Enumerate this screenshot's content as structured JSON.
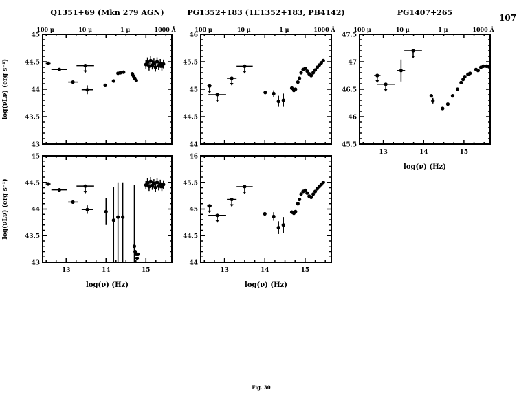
{
  "page_number": "107",
  "caption": "Fig. 30",
  "chart_data": [
    {
      "type": "scatter",
      "title": "Q1351+69 (Mkn 279 AGN)",
      "xlabel": "",
      "ylabel": "log(νLν) (erg s⁻¹)",
      "xlim": [
        12.41,
        15.65
      ],
      "ylim": [
        43,
        45
      ],
      "xticks": [],
      "yticks": [
        "43",
        "43.5",
        "44",
        "44.5",
        "45"
      ],
      "top_axis_labels": [
        "100 μ",
        "10 μ",
        "1 μ",
        "1000 Å"
      ],
      "points": [
        {
          "x": 12.55,
          "y": 44.47,
          "xe": 0.06
        },
        {
          "x": 12.83,
          "y": 44.36,
          "xe": 0.2
        },
        {
          "x": 13.17,
          "y": 44.13,
          "xe": 0.12
        },
        {
          "x": 13.48,
          "y": 44.43,
          "xe": 0.22,
          "up": true
        },
        {
          "x": 13.53,
          "y": 43.99,
          "xe": 0.14,
          "ye": 0.08
        },
        {
          "x": 13.98,
          "y": 44.07
        },
        {
          "x": 14.19,
          "y": 44.15
        },
        {
          "x": 14.3,
          "y": 44.29
        },
        {
          "x": 14.36,
          "y": 44.3
        },
        {
          "x": 14.44,
          "y": 44.31
        },
        {
          "x": 14.66,
          "y": 44.28
        },
        {
          "x": 14.69,
          "y": 44.24
        },
        {
          "x": 14.72,
          "y": 44.2
        },
        {
          "x": 14.76,
          "y": 44.16
        },
        {
          "x": 15.0,
          "y": 44.45,
          "ye": 0.08
        },
        {
          "x": 15.04,
          "y": 44.5,
          "ye": 0.08
        },
        {
          "x": 15.08,
          "y": 44.42,
          "ye": 0.08
        },
        {
          "x": 15.12,
          "y": 44.52,
          "ye": 0.08
        },
        {
          "x": 15.16,
          "y": 44.44,
          "ye": 0.08
        },
        {
          "x": 15.2,
          "y": 44.48,
          "ye": 0.08
        },
        {
          "x": 15.24,
          "y": 44.4,
          "ye": 0.08
        },
        {
          "x": 15.28,
          "y": 44.5,
          "ye": 0.08
        },
        {
          "x": 15.32,
          "y": 44.43,
          "ye": 0.08
        },
        {
          "x": 15.36,
          "y": 44.47,
          "ye": 0.08
        },
        {
          "x": 15.4,
          "y": 44.42,
          "ye": 0.08
        },
        {
          "x": 15.44,
          "y": 44.46,
          "ye": 0.08
        }
      ]
    },
    {
      "type": "scatter",
      "title": "PG1352+183 (1E1352+183, PB4142)",
      "xlabel": "",
      "ylabel": "",
      "xlim": [
        12.41,
        15.65
      ],
      "ylim": [
        44,
        46
      ],
      "xticks": [],
      "yticks": [
        "44",
        "44.5",
        "45",
        "45.5",
        "46"
      ],
      "top_axis_labels": [
        "100 μ",
        "10 μ",
        "1 μ",
        "1000 Å"
      ],
      "points": [
        {
          "x": 12.63,
          "y": 45.06,
          "xe": 0.06,
          "up": true
        },
        {
          "x": 12.82,
          "y": 44.9,
          "xe": 0.22,
          "up": true
        },
        {
          "x": 13.18,
          "y": 45.2,
          "xe": 0.12,
          "up": true
        },
        {
          "x": 13.5,
          "y": 45.42,
          "xe": 0.2,
          "up": true
        },
        {
          "x": 14.01,
          "y": 44.94,
          "xe": 0.04
        },
        {
          "x": 14.22,
          "y": 44.92,
          "ye": 0.06
        },
        {
          "x": 14.34,
          "y": 44.78,
          "ye": 0.1
        },
        {
          "x": 14.46,
          "y": 44.8,
          "ye": 0.12
        },
        {
          "x": 14.67,
          "y": 45.02
        },
        {
          "x": 14.72,
          "y": 44.98
        },
        {
          "x": 14.76,
          "y": 45.0
        },
        {
          "x": 14.82,
          "y": 45.13
        },
        {
          "x": 14.86,
          "y": 45.2
        },
        {
          "x": 14.9,
          "y": 45.3
        },
        {
          "x": 14.95,
          "y": 45.36
        },
        {
          "x": 15.0,
          "y": 45.38
        },
        {
          "x": 15.05,
          "y": 45.33
        },
        {
          "x": 15.1,
          "y": 45.28
        },
        {
          "x": 15.15,
          "y": 45.25
        },
        {
          "x": 15.2,
          "y": 45.3
        },
        {
          "x": 15.25,
          "y": 45.35
        },
        {
          "x": 15.3,
          "y": 45.4
        },
        {
          "x": 15.35,
          "y": 45.44
        },
        {
          "x": 15.4,
          "y": 45.48
        },
        {
          "x": 15.45,
          "y": 45.52
        }
      ]
    },
    {
      "type": "scatter",
      "title": "PG1407+265",
      "xlabel": "log(ν) (Hz)",
      "ylabel": "",
      "xlim": [
        12.41,
        15.65
      ],
      "ylim": [
        45.5,
        47.5
      ],
      "xticks": [
        "13",
        "14",
        "15"
      ],
      "yticks": [
        "45.5",
        "46",
        "46.5",
        "47",
        "47.5"
      ],
      "top_axis_labels": [
        "100 μ",
        "10 μ",
        "1 μ",
        "1000 Å"
      ],
      "points": [
        {
          "x": 12.85,
          "y": 46.75,
          "xe": 0.08,
          "up": true
        },
        {
          "x": 13.06,
          "y": 46.59,
          "xe": 0.22,
          "up": true
        },
        {
          "x": 13.44,
          "y": 46.84,
          "ye": 0.2,
          "xe": 0.1
        },
        {
          "x": 13.74,
          "y": 47.2,
          "xe": 0.22,
          "up": true
        },
        {
          "x": 14.19,
          "y": 46.38
        },
        {
          "x": 14.23,
          "y": 46.29,
          "ye": 0.05
        },
        {
          "x": 14.47,
          "y": 46.15
        },
        {
          "x": 14.6,
          "y": 46.23
        },
        {
          "x": 14.72,
          "y": 46.38
        },
        {
          "x": 14.84,
          "y": 46.5
        },
        {
          "x": 14.93,
          "y": 46.62
        },
        {
          "x": 14.98,
          "y": 46.68
        },
        {
          "x": 15.02,
          "y": 46.73
        },
        {
          "x": 15.1,
          "y": 46.77
        },
        {
          "x": 15.15,
          "y": 46.79
        },
        {
          "x": 15.3,
          "y": 46.86
        },
        {
          "x": 15.35,
          "y": 46.84
        },
        {
          "x": 15.42,
          "y": 46.9
        },
        {
          "x": 15.48,
          "y": 46.92
        },
        {
          "x": 15.56,
          "y": 46.92
        },
        {
          "x": 15.62,
          "y": 46.91
        }
      ]
    },
    {
      "type": "scatter",
      "title": "",
      "xlabel": "log(ν) (Hz)",
      "ylabel": "log(νLν) (erg s⁻¹)",
      "xlim": [
        12.41,
        15.65
      ],
      "ylim": [
        43,
        45
      ],
      "xticks": [
        "13",
        "14",
        "15"
      ],
      "yticks": [
        "43",
        "43.5",
        "44",
        "44.5",
        "45"
      ],
      "top_axis_labels": [],
      "points": [
        {
          "x": 12.55,
          "y": 44.47,
          "xe": 0.06
        },
        {
          "x": 12.83,
          "y": 44.36,
          "xe": 0.2
        },
        {
          "x": 13.17,
          "y": 44.13,
          "xe": 0.12
        },
        {
          "x": 13.48,
          "y": 44.43,
          "xe": 0.22,
          "up": true
        },
        {
          "x": 13.53,
          "y": 43.99,
          "xe": 0.14,
          "ye": 0.08
        },
        {
          "x": 14.0,
          "y": 43.95,
          "yr": [
            43.7,
            44.2
          ]
        },
        {
          "x": 14.19,
          "y": 43.79,
          "yr": [
            43.0,
            44.41
          ]
        },
        {
          "x": 14.3,
          "y": 43.85,
          "yr": [
            43.0,
            44.5
          ]
        },
        {
          "x": 14.42,
          "y": 43.85,
          "yr": [
            43.0,
            44.5
          ]
        },
        {
          "x": 14.71,
          "y": 43.3,
          "yr": [
            43.0,
            44.45
          ]
        },
        {
          "x": 14.73,
          "y": 43.2
        },
        {
          "x": 14.76,
          "y": 43.15
        },
        {
          "x": 14.8,
          "y": 43.15
        },
        {
          "x": 14.78,
          "y": 43.07
        },
        {
          "x": 15.0,
          "y": 44.45,
          "ye": 0.08
        },
        {
          "x": 15.04,
          "y": 44.5,
          "ye": 0.08
        },
        {
          "x": 15.08,
          "y": 44.42,
          "ye": 0.08
        },
        {
          "x": 15.12,
          "y": 44.52,
          "ye": 0.08
        },
        {
          "x": 15.16,
          "y": 44.44,
          "ye": 0.08
        },
        {
          "x": 15.2,
          "y": 44.48,
          "ye": 0.08
        },
        {
          "x": 15.24,
          "y": 44.4,
          "ye": 0.08
        },
        {
          "x": 15.28,
          "y": 44.5,
          "ye": 0.08
        },
        {
          "x": 15.32,
          "y": 44.43,
          "ye": 0.08
        },
        {
          "x": 15.36,
          "y": 44.47,
          "ye": 0.08
        },
        {
          "x": 15.4,
          "y": 44.42,
          "ye": 0.08
        },
        {
          "x": 15.44,
          "y": 44.46,
          "ye": 0.08
        }
      ]
    },
    {
      "type": "scatter",
      "title": "",
      "xlabel": "log(ν) (Hz)",
      "ylabel": "",
      "xlim": [
        12.41,
        15.65
      ],
      "ylim": [
        44,
        46
      ],
      "xticks": [
        "13",
        "14",
        "15"
      ],
      "yticks": [
        "44",
        "44.5",
        "45",
        "45.5",
        "46"
      ],
      "top_axis_labels": [],
      "points": [
        {
          "x": 12.63,
          "y": 45.06,
          "xe": 0.06,
          "up": true
        },
        {
          "x": 12.82,
          "y": 44.88,
          "xe": 0.22,
          "up": true
        },
        {
          "x": 13.18,
          "y": 45.18,
          "xe": 0.12,
          "up": true
        },
        {
          "x": 13.5,
          "y": 45.42,
          "xe": 0.2,
          "up": true
        },
        {
          "x": 14.0,
          "y": 44.91,
          "xe": 0.04
        },
        {
          "x": 14.22,
          "y": 44.86,
          "ye": 0.08
        },
        {
          "x": 14.34,
          "y": 44.65,
          "ye": 0.12
        },
        {
          "x": 14.46,
          "y": 44.7,
          "ye": 0.15
        },
        {
          "x": 14.67,
          "y": 44.94
        },
        {
          "x": 14.72,
          "y": 44.92
        },
        {
          "x": 14.76,
          "y": 44.95
        },
        {
          "x": 14.82,
          "y": 45.1
        },
        {
          "x": 14.86,
          "y": 45.18
        },
        {
          "x": 14.9,
          "y": 45.28
        },
        {
          "x": 14.95,
          "y": 45.33
        },
        {
          "x": 15.0,
          "y": 45.35
        },
        {
          "x": 15.05,
          "y": 45.3
        },
        {
          "x": 15.1,
          "y": 45.24
        },
        {
          "x": 15.15,
          "y": 45.22
        },
        {
          "x": 15.2,
          "y": 45.28
        },
        {
          "x": 15.25,
          "y": 45.33
        },
        {
          "x": 15.3,
          "y": 45.38
        },
        {
          "x": 15.35,
          "y": 45.42
        },
        {
          "x": 15.4,
          "y": 45.46
        },
        {
          "x": 15.45,
          "y": 45.5
        }
      ]
    }
  ]
}
